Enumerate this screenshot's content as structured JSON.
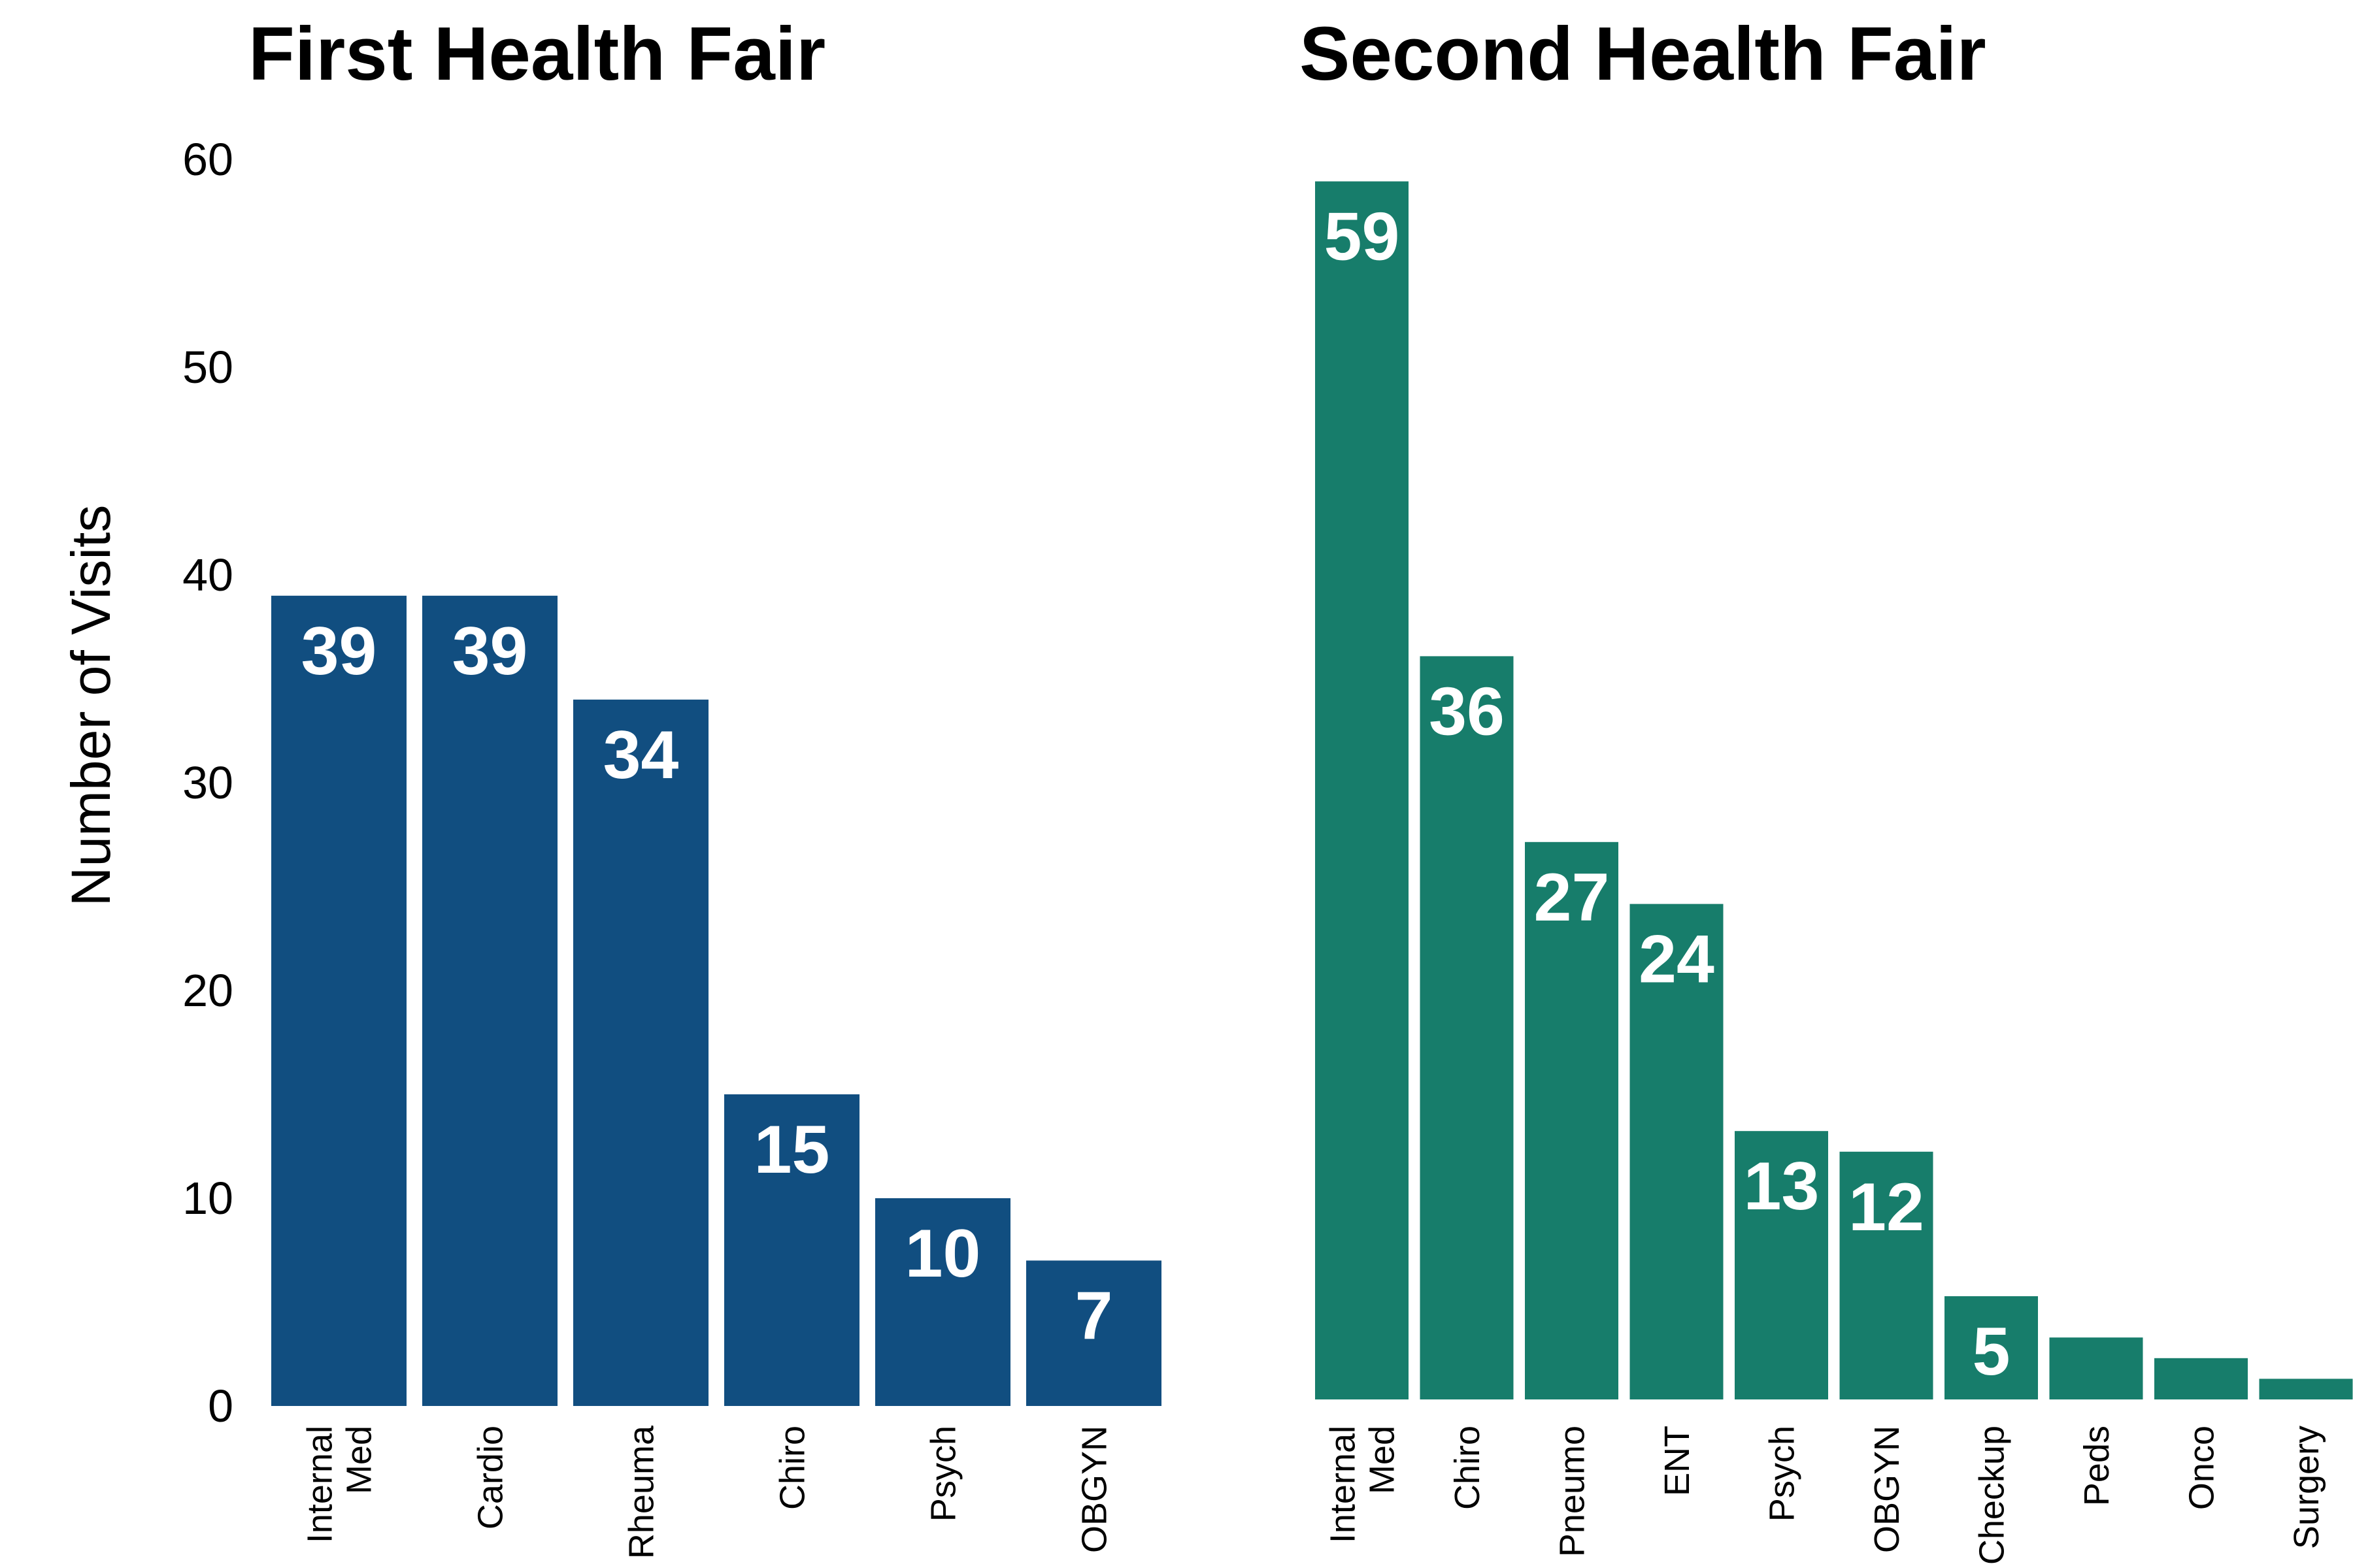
{
  "chart_data": [
    {
      "type": "bar",
      "title": "First Health Fair",
      "ylabel": "Number of Visits",
      "xlabel": "",
      "ylim": [
        0,
        60
      ],
      "yticks": [
        0,
        10,
        20,
        30,
        40,
        50,
        60
      ],
      "grid": false,
      "color": "#114e80",
      "categories": [
        "Internal\nMed",
        "Cardio",
        "Rheuma",
        "Chiro",
        "Psych",
        "OBGYN"
      ],
      "values": [
        39,
        39,
        34,
        15,
        10,
        7
      ],
      "labels": [
        "39",
        "39",
        "34",
        "15",
        "10",
        "7"
      ]
    },
    {
      "type": "bar",
      "title": "Second Health Fair",
      "ylabel": "",
      "xlabel": "",
      "ylim": [
        0,
        60
      ],
      "grid": false,
      "color": "#177d6b",
      "categories": [
        "Internal\nMed",
        "Chiro",
        "Pneumo",
        "ENT",
        "Psych",
        "OBGYN",
        "Checkup",
        "Peds",
        "Onco",
        "Surgery"
      ],
      "values": [
        59,
        36,
        27,
        24,
        13,
        12,
        5,
        3,
        2,
        1
      ],
      "labels": [
        "59",
        "36",
        "27",
        "24",
        "13",
        "12",
        "5",
        "",
        "",
        ""
      ]
    }
  ]
}
